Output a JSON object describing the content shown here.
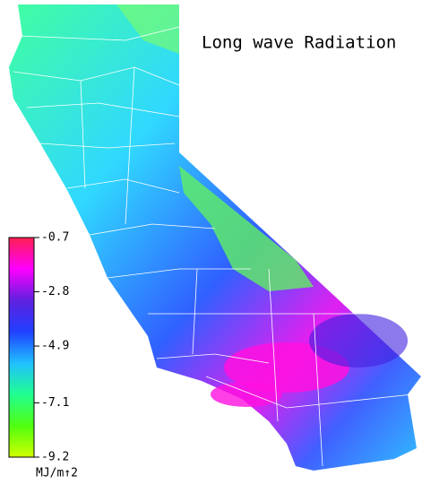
{
  "title": "Long wave Radiation",
  "colorbar": {
    "ticks": [
      -0.7,
      -2.8,
      -4.9,
      -7.1,
      -9.2
    ],
    "colors": [
      "#ff2050",
      "#ff00ff",
      "#6020e0",
      "#2040ff",
      "#20c0ff",
      "#20ff90",
      "#50ff10",
      "#d0ff00"
    ],
    "unit": "MJ/m↑2"
  }
}
